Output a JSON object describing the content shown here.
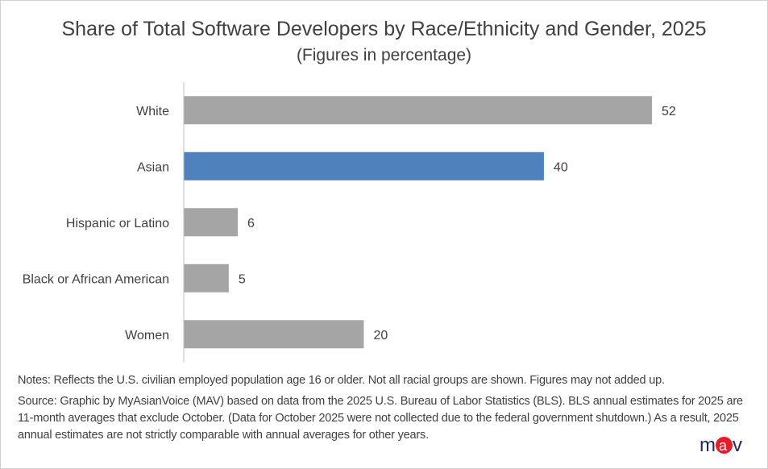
{
  "chart_data": {
    "type": "bar",
    "orientation": "horizontal",
    "title": "Share of Total Software Developers by Race/Ethnicity and Gender, 2025",
    "subtitle": "(Figures in percentage)",
    "categories": [
      "White",
      "Asian",
      "Hispanic or Latino",
      "Black or African American",
      "Women"
    ],
    "values": [
      52,
      40,
      6,
      5,
      20
    ],
    "highlight": "Asian",
    "colors": {
      "default": "#a5a5a5",
      "highlight": "#4f81bd"
    },
    "xlim": [
      0,
      60
    ],
    "grid": false,
    "data_labels": true
  },
  "notes": "Notes:  Reflects the U.S. civilian employed population age 16 or older. Not all racial groups are shown. Figures may not added up.",
  "source": "Source: Graphic by MyAsianVoice (MAV) based on data from the 2025 U.S. Bureau of Labor Statistics (BLS). BLS annual estimates for 2025 are 11-month averages that exclude October. (Data for October 2025 were not collected due to the federal  government shutdown.) As a result, 2025 annual estimates are not strictly comparable with annual averages for other years.",
  "logo": {
    "text": "mav",
    "colors": {
      "letters": "#1f2a5c",
      "circle": "#e41e26"
    }
  }
}
